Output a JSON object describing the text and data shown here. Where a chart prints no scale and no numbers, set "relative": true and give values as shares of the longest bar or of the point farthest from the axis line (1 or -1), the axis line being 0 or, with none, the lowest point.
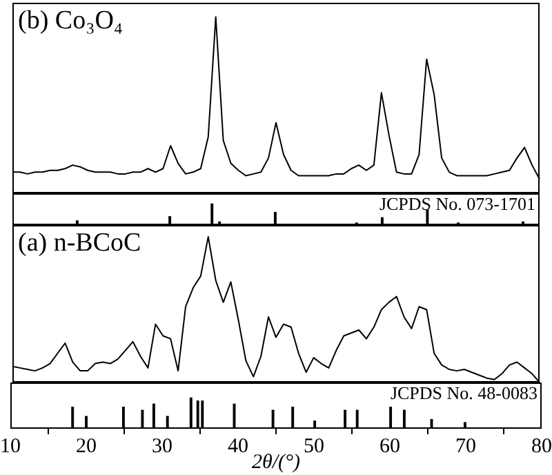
{
  "chart_data": [
    {
      "type": "line",
      "relative": true,
      "annotations": [
        "(b) Co₃O₄"
      ],
      "tick_labels": false,
      "legend": false,
      "grid": false,
      "marker": "none",
      "categories": [
        null,
        null,
        null,
        null,
        null,
        null,
        null,
        null,
        null,
        null,
        null,
        null,
        null,
        null,
        null,
        null,
        null,
        null,
        null,
        null,
        null,
        null,
        null,
        null,
        null,
        null,
        null,
        null,
        null,
        null,
        null,
        null,
        null,
        null,
        null,
        null,
        null,
        null,
        null,
        null,
        null,
        null,
        null,
        null,
        null,
        null,
        null,
        null,
        null,
        null,
        null,
        null,
        null,
        null,
        null,
        null,
        null,
        null,
        null,
        null,
        null,
        null,
        null,
        null,
        null,
        null,
        null,
        null,
        null,
        null,
        null
      ],
      "series": [
        {
          "color": "#000000",
          "values": [
            0.12,
            0.12,
            0.11,
            0.12,
            0.12,
            0.13,
            0.13,
            0.14,
            0.16,
            0.15,
            0.13,
            0.12,
            0.12,
            0.12,
            0.11,
            0.11,
            0.12,
            0.12,
            0.14,
            0.12,
            0.14,
            0.27,
            0.17,
            0.11,
            0.12,
            0.14,
            0.32,
            1,
            0.3,
            0.17,
            0.13,
            0.1,
            0.11,
            0.12,
            0.2,
            0.4,
            0.22,
            0.13,
            0.1,
            0.1,
            0.1,
            0.1,
            0.1,
            0.11,
            0.11,
            0.14,
            0.16,
            0.13,
            0.16,
            0.57,
            0.33,
            0.12,
            0.11,
            0.11,
            0.22,
            0.76,
            0.56,
            0.2,
            0.12,
            0.1,
            0.1,
            0.1,
            0.1,
            0.1,
            0.11,
            0.12,
            0.13,
            0.2,
            0.26,
            0.16,
            0.08
          ]
        }
      ]
    },
    {
      "type": "bar",
      "relative": true,
      "annotations": [
        "JCPDS No. 073-1701"
      ],
      "xlim": [
        10,
        80
      ],
      "tick_labels": false,
      "legend": false,
      "grid": false,
      "x": [
        18.6,
        30.9,
        36.5,
        37.5,
        44.9,
        55.7,
        59.1,
        65.1,
        69.2,
        77.8
      ],
      "series": [
        {
          "color": "#000000",
          "values": [
            0.2,
            0.4,
            1,
            0.15,
            0.6,
            0.1,
            0.35,
            0.7,
            0.1,
            0.15
          ]
        }
      ]
    },
    {
      "type": "line",
      "relative": true,
      "annotations": [
        "(a) n-BCoC"
      ],
      "tick_labels": false,
      "legend": false,
      "grid": false,
      "marker": "none",
      "categories": [
        null,
        null,
        null,
        null,
        null,
        null,
        null,
        null,
        null,
        null,
        null,
        null,
        null,
        null,
        null,
        null,
        null,
        null,
        null,
        null,
        null,
        null,
        null,
        null,
        null,
        null,
        null,
        null,
        null,
        null,
        null,
        null,
        null,
        null,
        null,
        null,
        null,
        null,
        null,
        null,
        null,
        null,
        null,
        null,
        null,
        null,
        null,
        null,
        null,
        null,
        null,
        null,
        null,
        null,
        null,
        null,
        null,
        null,
        null,
        null,
        null,
        null,
        null,
        null,
        null,
        null,
        null,
        null,
        null,
        null,
        null
      ],
      "series": [
        {
          "color": "#000000",
          "values": [
            0.11,
            0.1,
            0.09,
            0.08,
            0.1,
            0.13,
            0.2,
            0.27,
            0.14,
            0.08,
            0.08,
            0.13,
            0.14,
            0.13,
            0.16,
            0.22,
            0.28,
            0.18,
            0.1,
            0.4,
            0.32,
            0.3,
            0.08,
            0.52,
            0.65,
            0.73,
            1,
            0.7,
            0.55,
            0.69,
            0.43,
            0.15,
            0.04,
            0.18,
            0.45,
            0.31,
            0.4,
            0.38,
            0.2,
            0.07,
            0.17,
            0.13,
            0.1,
            0.22,
            0.32,
            0.34,
            0.36,
            0.3,
            0.38,
            0.5,
            0.55,
            0.59,
            0.45,
            0.37,
            0.52,
            0.5,
            0.2,
            0.12,
            0.09,
            0.08,
            0.09,
            0.07,
            0.05,
            0.03,
            0.02,
            0.06,
            0.12,
            0.14,
            0.1,
            0.06,
            0
          ]
        }
      ]
    },
    {
      "type": "bar",
      "relative": true,
      "annotations": [
        "JCPDS No. 48-0083"
      ],
      "xlim": [
        10,
        80
      ],
      "xticks": [
        10,
        20,
        30,
        40,
        50,
        60,
        70,
        80
      ],
      "xlabel": "2θ/(°)",
      "tick_labels": "x",
      "legend": false,
      "grid": false,
      "x": [
        18.2,
        20,
        24.9,
        27.4,
        28.9,
        30.7,
        33.8,
        34.7,
        35.3,
        39.5,
        44.6,
        47.2,
        50.1,
        54.1,
        55.7,
        60.1,
        61.9,
        65.5,
        69.9
      ],
      "series": [
        {
          "color": "#000000",
          "values": [
            0.7,
            0.4,
            0.7,
            0.6,
            0.8,
            0.4,
            1,
            0.9,
            0.9,
            0.8,
            0.6,
            0.7,
            0.25,
            0.6,
            0.6,
            0.7,
            0.6,
            0.3,
            0.2
          ]
        }
      ]
    }
  ]
}
